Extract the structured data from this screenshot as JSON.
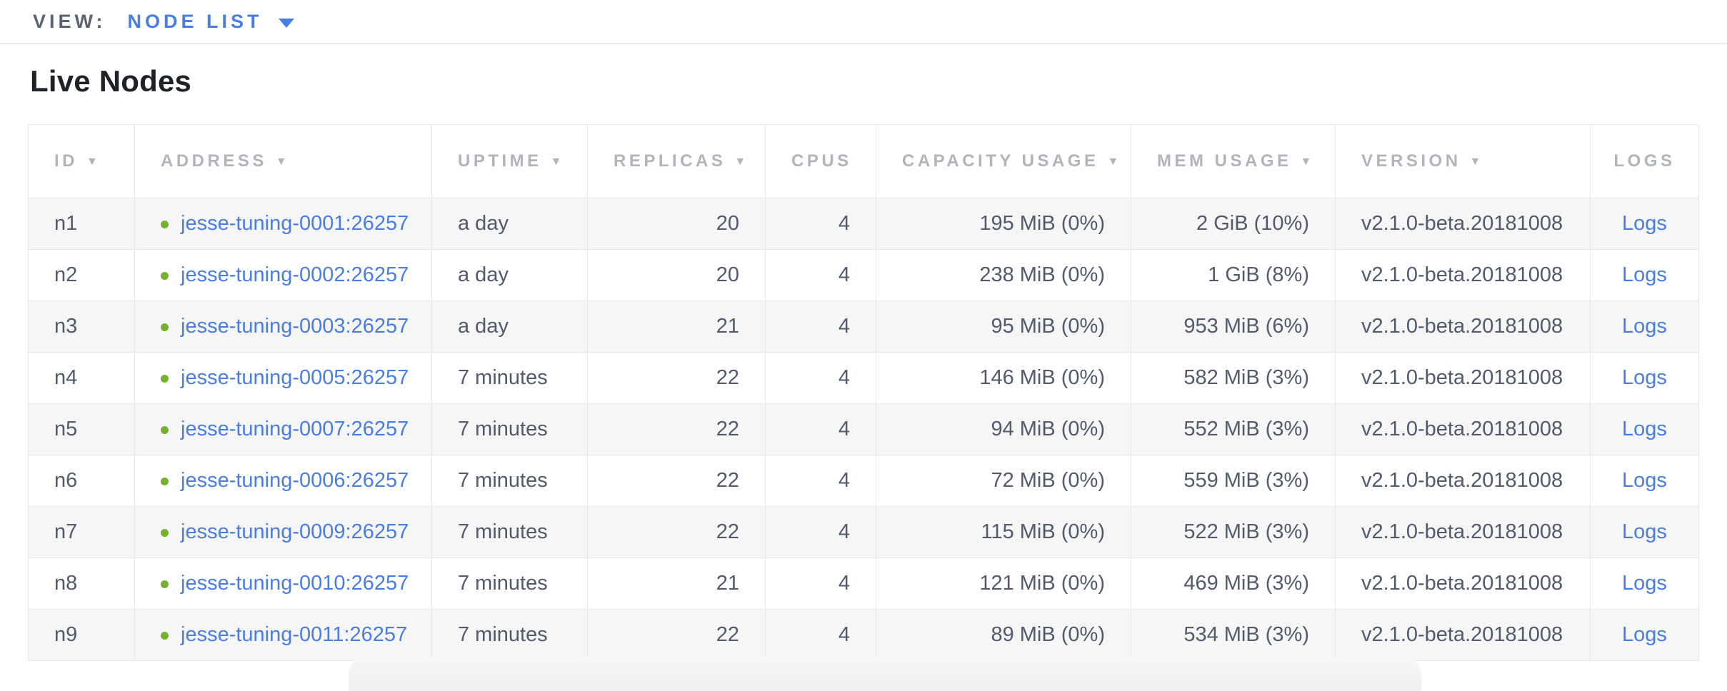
{
  "view_bar": {
    "label": "VIEW:",
    "selected": "NODE LIST"
  },
  "page": {
    "title": "Live Nodes"
  },
  "table": {
    "sort_icon": "▼",
    "columns": [
      {
        "label": "ID",
        "sortable": true
      },
      {
        "label": "ADDRESS",
        "sortable": true
      },
      {
        "label": "UPTIME",
        "sortable": true
      },
      {
        "label": "REPLICAS",
        "sortable": true
      },
      {
        "label": "CPUS",
        "sortable": false
      },
      {
        "label": "CAPACITY USAGE",
        "sortable": true
      },
      {
        "label": "MEM USAGE",
        "sortable": true
      },
      {
        "label": "VERSION",
        "sortable": true
      },
      {
        "label": "LOGS",
        "sortable": false
      }
    ],
    "rows": [
      {
        "id": "n1",
        "address": "jesse-tuning-0001:26257",
        "uptime": "a day",
        "replicas": "20",
        "cpus": "4",
        "capacity": "195 MiB (0%)",
        "mem": "2 GiB (10%)",
        "version": "v2.1.0-beta.20181008",
        "logs": "Logs"
      },
      {
        "id": "n2",
        "address": "jesse-tuning-0002:26257",
        "uptime": "a day",
        "replicas": "20",
        "cpus": "4",
        "capacity": "238 MiB (0%)",
        "mem": "1 GiB (8%)",
        "version": "v2.1.0-beta.20181008",
        "logs": "Logs"
      },
      {
        "id": "n3",
        "address": "jesse-tuning-0003:26257",
        "uptime": "a day",
        "replicas": "21",
        "cpus": "4",
        "capacity": "95 MiB (0%)",
        "mem": "953 MiB (6%)",
        "version": "v2.1.0-beta.20181008",
        "logs": "Logs"
      },
      {
        "id": "n4",
        "address": "jesse-tuning-0005:26257",
        "uptime": "7 minutes",
        "replicas": "22",
        "cpus": "4",
        "capacity": "146 MiB (0%)",
        "mem": "582 MiB (3%)",
        "version": "v2.1.0-beta.20181008",
        "logs": "Logs"
      },
      {
        "id": "n5",
        "address": "jesse-tuning-0007:26257",
        "uptime": "7 minutes",
        "replicas": "22",
        "cpus": "4",
        "capacity": "94 MiB (0%)",
        "mem": "552 MiB (3%)",
        "version": "v2.1.0-beta.20181008",
        "logs": "Logs"
      },
      {
        "id": "n6",
        "address": "jesse-tuning-0006:26257",
        "uptime": "7 minutes",
        "replicas": "22",
        "cpus": "4",
        "capacity": "72 MiB (0%)",
        "mem": "559 MiB (3%)",
        "version": "v2.1.0-beta.20181008",
        "logs": "Logs"
      },
      {
        "id": "n7",
        "address": "jesse-tuning-0009:26257",
        "uptime": "7 minutes",
        "replicas": "22",
        "cpus": "4",
        "capacity": "115 MiB (0%)",
        "mem": "522 MiB (3%)",
        "version": "v2.1.0-beta.20181008",
        "logs": "Logs"
      },
      {
        "id": "n8",
        "address": "jesse-tuning-0010:26257",
        "uptime": "7 minutes",
        "replicas": "21",
        "cpus": "4",
        "capacity": "121 MiB (0%)",
        "mem": "469 MiB (3%)",
        "version": "v2.1.0-beta.20181008",
        "logs": "Logs"
      },
      {
        "id": "n9",
        "address": "jesse-tuning-0011:26257",
        "uptime": "7 minutes",
        "replicas": "22",
        "cpus": "4",
        "capacity": "89 MiB (0%)",
        "mem": "534 MiB (3%)",
        "version": "v2.1.0-beta.20181008",
        "logs": "Logs"
      }
    ]
  },
  "colors": {
    "accent_blue": "#4a7de2",
    "status_green": "#74b22c",
    "header_gray": "#b1b4b9",
    "cell_text": "#525a6c",
    "row_stripe": "#f6f6f7",
    "border": "#e7e8ea"
  },
  "icons": {
    "dropdown_caret": "caret-down",
    "sort_arrow": "triangle-down",
    "node_status": "green-dot"
  }
}
